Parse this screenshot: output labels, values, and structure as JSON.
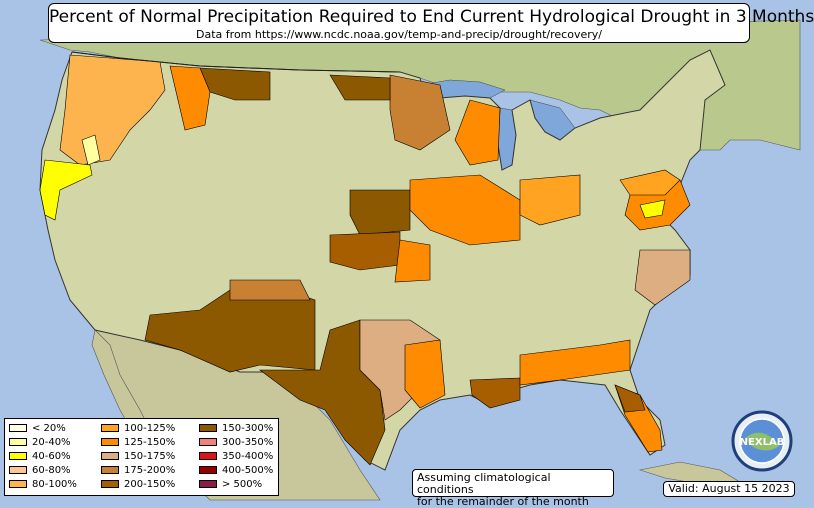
{
  "header": {
    "title": "Percent of Normal Precipitation Required to End Current Hydrological Drought in 3 Months",
    "subtitle": "Data from https://www.ncdc.noaa.gov/temp-and-precip/drought/recovery/"
  },
  "legend": {
    "items": [
      {
        "label": "< 20%",
        "color": "#ffffe5"
      },
      {
        "label": "20-40%",
        "color": "#ffffa0"
      },
      {
        "label": "40-60%",
        "color": "#ffff00"
      },
      {
        "label": "60-80%",
        "color": "#fdc890"
      },
      {
        "label": "80-100%",
        "color": "#fdb44e"
      },
      {
        "label": "100-125%",
        "color": "#ffa320"
      },
      {
        "label": "125-150%",
        "color": "#ff8c00"
      },
      {
        "label": "150-175%",
        "color": "#dcae82"
      },
      {
        "label": "175-200%",
        "color": "#c88132"
      },
      {
        "label": "200-150%",
        "color": "#a65e00"
      },
      {
        "label": "150-300%",
        "color": "#8c5800"
      },
      {
        "label": "300-350%",
        "color": "#f08080"
      },
      {
        "label": "350-400%",
        "color": "#dc1414"
      },
      {
        "label": "400-500%",
        "color": "#960000"
      },
      {
        "label": "> 500%",
        "color": "#8b1a4a"
      }
    ]
  },
  "note": {
    "line1": "Assuming climatological conditions",
    "line2": "for the remainder of the month"
  },
  "valid": "Valid: August 15 2023",
  "logo": {
    "text": "NEXLAB",
    "icon": "globe-logo-icon"
  }
}
